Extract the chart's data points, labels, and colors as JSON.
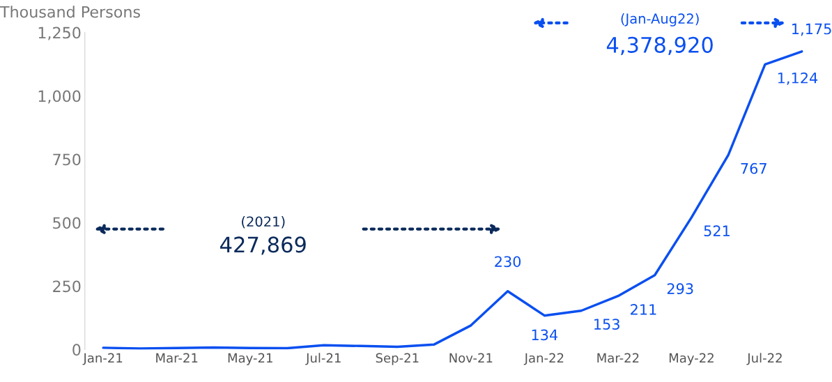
{
  "chart_data": {
    "type": "line",
    "ylabel": "Thousand Persons",
    "categories": [
      "Jan-21",
      null,
      "Mar-21",
      null,
      "May-21",
      null,
      "Jul-21",
      null,
      "Sep-21",
      null,
      "Nov-21",
      null,
      "Jan-22",
      null,
      "Mar-22",
      null,
      "May-22",
      null,
      "Jul-22",
      null
    ],
    "series": [
      {
        "color": "#0a4ff0",
        "values": [
          7,
          4,
          6,
          8,
          6,
          5,
          17,
          14,
          11,
          20,
          95,
          230,
          134,
          153,
          211,
          293,
          521,
          767,
          1124,
          1175
        ],
        "value_labels": [
          null,
          null,
          null,
          null,
          null,
          null,
          null,
          null,
          null,
          null,
          null,
          "230",
          "134",
          "153",
          "211",
          "293",
          "521",
          "767",
          "1,124",
          "1,175"
        ]
      }
    ],
    "ylim": [
      0,
      1250
    ],
    "yticks": [
      0,
      250,
      500,
      750,
      {
        "value": 1000,
        "label": "1,000"
      },
      {
        "value": 1250,
        "label": "1,250"
      }
    ],
    "grid": false,
    "marker": "none",
    "line_style": "solid",
    "annotations": [
      "(2021)",
      "427,869",
      "(Jan-Aug22)",
      "4,378,920"
    ]
  }
}
